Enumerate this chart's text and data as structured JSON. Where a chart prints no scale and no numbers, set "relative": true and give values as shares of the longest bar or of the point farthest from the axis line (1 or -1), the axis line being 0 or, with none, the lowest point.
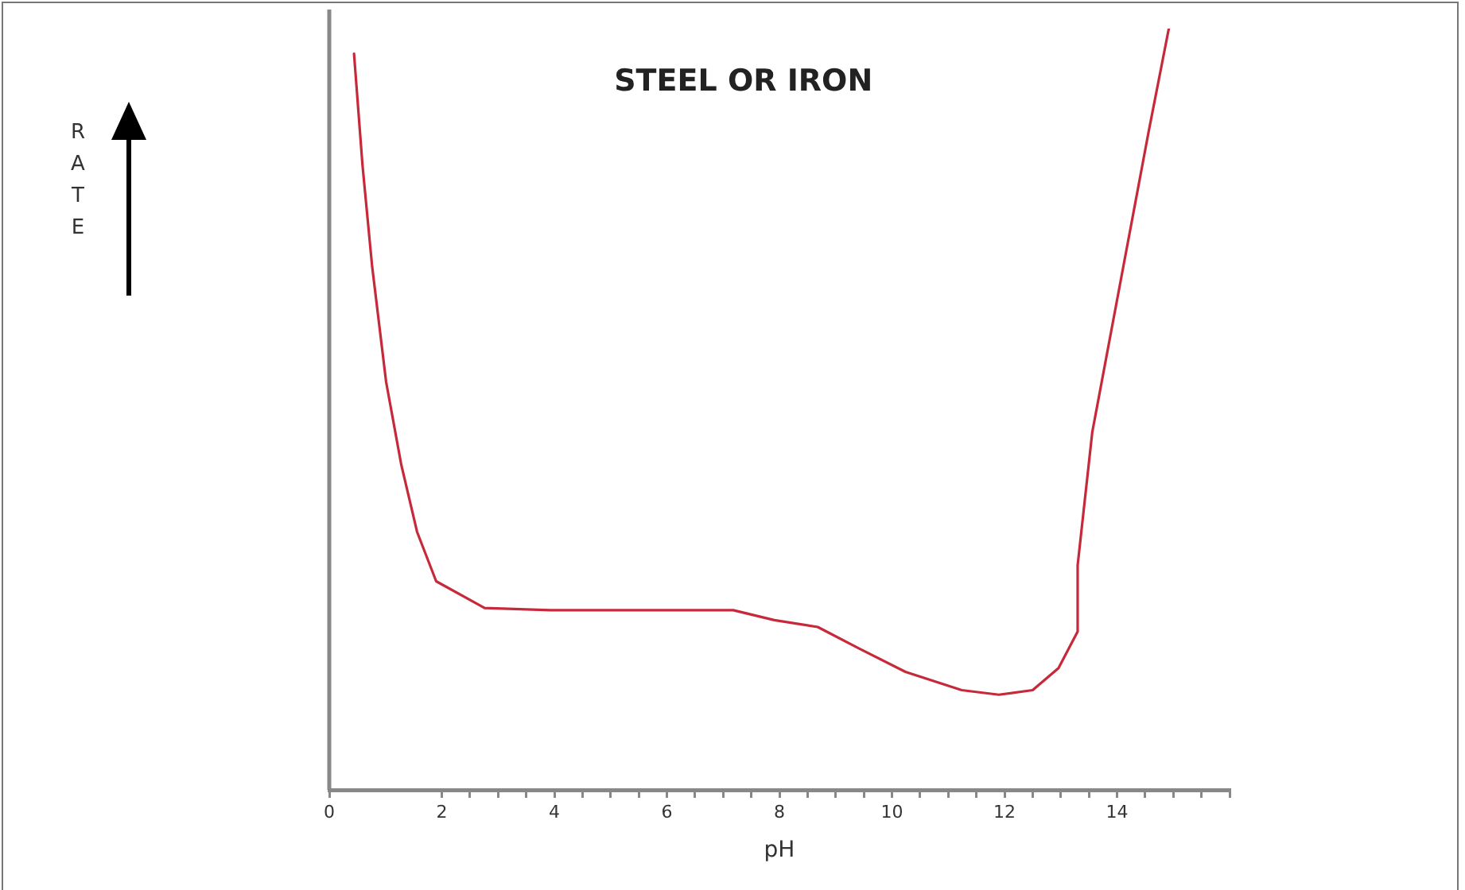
{
  "chart_data": {
    "type": "line",
    "title": "STEEL OR IRON",
    "xlabel": "pH",
    "annotations": [
      "RATE"
    ],
    "relative": true,
    "xlim": [
      0,
      16
    ],
    "xticks": [
      0,
      2,
      {
        "value": 2.5,
        "label": null
      },
      {
        "value": 3,
        "label": null
      },
      {
        "value": 3.5,
        "label": null
      },
      4,
      {
        "value": 4.5,
        "label": null
      },
      {
        "value": 5,
        "label": null
      },
      {
        "value": 5.5,
        "label": null
      },
      6,
      {
        "value": 6.5,
        "label": null
      },
      {
        "value": 7,
        "label": null
      },
      {
        "value": 7.5,
        "label": null
      },
      8,
      {
        "value": 8.5,
        "label": null
      },
      {
        "value": 9,
        "label": null
      },
      {
        "value": 9.5,
        "label": null
      },
      10,
      {
        "value": 10.5,
        "label": null
      },
      {
        "value": 11,
        "label": null
      },
      {
        "value": 11.5,
        "label": null
      },
      12,
      {
        "value": 12.5,
        "label": null
      },
      {
        "value": 13,
        "label": null
      },
      {
        "value": 13.5,
        "label": null
      },
      14,
      {
        "value": 14.5,
        "label": null
      },
      {
        "value": 15,
        "label": null
      },
      {
        "value": 15.5,
        "label": null
      },
      {
        "value": 16,
        "label": null
      }
    ],
    "x": [
      0.44,
      0.59,
      0.76,
      1.01,
      1.28,
      1.56,
      1.9,
      2.76,
      3.93,
      5.92,
      7.18,
      7.91,
      8.68,
      9.41,
      10.24,
      11.24,
      11.9,
      12.5,
      12.96,
      13.3,
      13.3,
      13.56,
      14.06,
      14.56,
      14.92
    ],
    "series": [
      {
        "color": "#c62a3a",
        "values": [
          0.967,
          0.821,
          0.689,
          0.536,
          0.427,
          0.339,
          0.274,
          0.239,
          0.236,
          0.236,
          0.236,
          0.223,
          0.214,
          0.186,
          0.155,
          0.131,
          0.125,
          0.131,
          0.16,
          0.208,
          0.295,
          0.47,
          0.667,
          0.864,
          1.0
        ]
      }
    ],
    "grid": false,
    "legend": false,
    "marker": "none",
    "line_style": "solid"
  }
}
